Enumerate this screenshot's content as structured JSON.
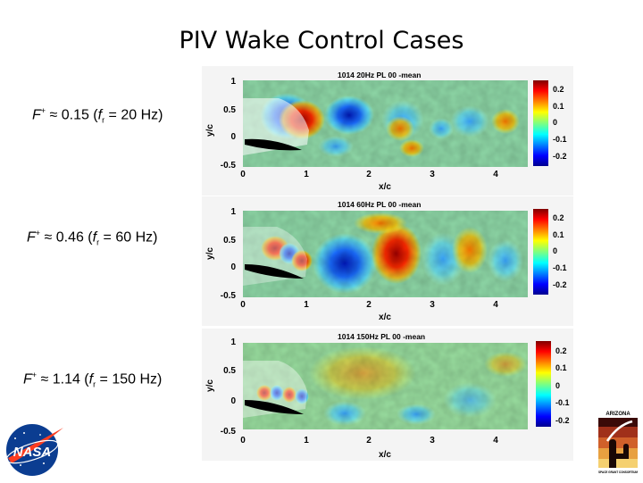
{
  "slide": {
    "title": "PIV Wake Control Cases"
  },
  "cases": [
    {
      "label_prefix": "F",
      "label_sup": "+",
      "label_mid": " ≈ 0.15 (",
      "label_f": "f",
      "label_sub": "r",
      "label_end": " = 20 Hz)",
      "panel_title": "1014 20Hz PL 00 -mean",
      "xlabel": "x/c",
      "ylabel": "y/c",
      "xticks": [
        "0",
        "1",
        "2",
        "3",
        "4"
      ],
      "yticks": [
        "1",
        "0.5",
        "0",
        "-0.5"
      ],
      "colorbar_ticks": [
        "0.2",
        "0.1",
        "0",
        "-0.1",
        "-0.2"
      ]
    },
    {
      "label_prefix": "F",
      "label_sup": "+",
      "label_mid": " ≈ 0.46 (",
      "label_f": "f",
      "label_sub": "r",
      "label_end": " = 60 Hz)",
      "panel_title": "1014 60Hz PL 00 -mean",
      "xlabel": "x/c",
      "ylabel": "y/c",
      "xticks": [
        "0",
        "1",
        "2",
        "3",
        "4"
      ],
      "yticks": [
        "1",
        "0.5",
        "0",
        "-0.5"
      ],
      "colorbar_ticks": [
        "0.2",
        "0.1",
        "0",
        "-0.1",
        "-0.2"
      ]
    },
    {
      "label_prefix": "F",
      "label_sup": "+",
      "label_mid": " ≈ 1.14 (",
      "label_f": "f",
      "label_sub": "r",
      "label_end": " = 150 Hz)",
      "panel_title": "1014 150Hz PL 00 -mean",
      "xlabel": "x/c",
      "ylabel": "y/c",
      "xticks": [
        "0",
        "1",
        "2",
        "3",
        "4"
      ],
      "yticks": [
        "1",
        "0.5",
        "0",
        "-0.5"
      ],
      "colorbar_ticks": [
        "0.2",
        "0.1",
        "0",
        "-0.1",
        "-0.2"
      ]
    }
  ],
  "logos": {
    "nasa": "NASA",
    "arizona_top": "ARIZONA",
    "arizona_bottom": "SPACE GRANT CONSORTIUM"
  },
  "colors": {
    "field_background": "#8fd9a8",
    "high": "#b30000",
    "low": "#0a3fd6"
  }
}
